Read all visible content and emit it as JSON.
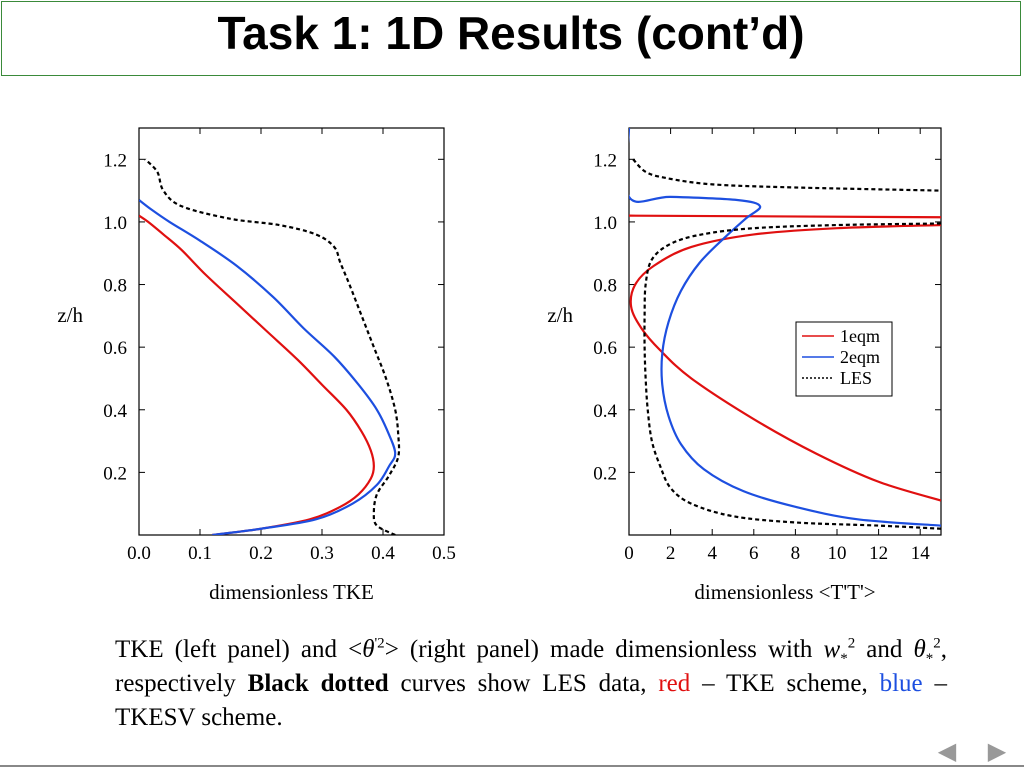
{
  "title": "Task 1: 1D Results (cont’d)",
  "caption": {
    "part1": "TKE (left panel) and <",
    "theta": "θ",
    "prime2": "'2",
    "part2": "> (right panel) made dimensionless with ",
    "w": "w",
    "star": "*",
    "sq": "2",
    "and": " and ",
    "theta2": "θ",
    "part3": ", respectively ",
    "bold": "Black dotted",
    "part4": " curves show LES data, ",
    "red_word": "red",
    "part5": " – TKE scheme, ",
    "blue_word": "blue",
    "part6": " – TKESV scheme."
  },
  "colors": {
    "red": "#e01010",
    "blue": "#1d4fe0",
    "les": "#000000",
    "title_border": "#3a8a3a"
  },
  "nav": {
    "prev_icon": "◀",
    "next_icon": "▶"
  },
  "chart_data": [
    {
      "type": "line",
      "xlabel": "dimensionless TKE",
      "ylabel": "z/h",
      "xlim": [
        0,
        0.5
      ],
      "ylim": [
        0,
        1.3
      ],
      "xticks": [
        "0.0",
        "0.1",
        "0.2",
        "0.3",
        "0.4",
        "0.5"
      ],
      "yticks": [
        "0.2",
        "0.4",
        "0.6",
        "0.8",
        "1.0",
        "1.2"
      ],
      "series": [
        {
          "style": "red-solid",
          "points": [
            [
              0.12,
              0.0
            ],
            [
              0.2,
              0.02
            ],
            [
              0.28,
              0.05
            ],
            [
              0.33,
              0.09
            ],
            [
              0.36,
              0.13
            ],
            [
              0.38,
              0.18
            ],
            [
              0.385,
              0.22
            ],
            [
              0.38,
              0.27
            ],
            [
              0.365,
              0.33
            ],
            [
              0.34,
              0.4
            ],
            [
              0.3,
              0.48
            ],
            [
              0.26,
              0.56
            ],
            [
              0.21,
              0.65
            ],
            [
              0.16,
              0.74
            ],
            [
              0.11,
              0.83
            ],
            [
              0.07,
              0.91
            ],
            [
              0.04,
              0.96
            ],
            [
              0.015,
              1.0
            ],
            [
              0.0,
              1.02
            ]
          ]
        },
        {
          "style": "blue-solid",
          "points": [
            [
              0.12,
              0.0
            ],
            [
              0.2,
              0.02
            ],
            [
              0.29,
              0.05
            ],
            [
              0.35,
              0.1
            ],
            [
              0.39,
              0.16
            ],
            [
              0.41,
              0.22
            ],
            [
              0.42,
              0.26
            ],
            [
              0.41,
              0.32
            ],
            [
              0.39,
              0.4
            ],
            [
              0.36,
              0.48
            ],
            [
              0.32,
              0.57
            ],
            [
              0.27,
              0.66
            ],
            [
              0.22,
              0.76
            ],
            [
              0.16,
              0.86
            ],
            [
              0.1,
              0.94
            ],
            [
              0.05,
              1.0
            ],
            [
              0.02,
              1.04
            ],
            [
              0.0,
              1.07
            ]
          ]
        },
        {
          "style": "black-dotted",
          "points": [
            [
              0.42,
              0.0
            ],
            [
              0.39,
              0.03
            ],
            [
              0.385,
              0.07
            ],
            [
              0.39,
              0.13
            ],
            [
              0.41,
              0.19
            ],
            [
              0.425,
              0.25
            ],
            [
              0.425,
              0.32
            ],
            [
              0.42,
              0.4
            ],
            [
              0.405,
              0.5
            ],
            [
              0.385,
              0.6
            ],
            [
              0.365,
              0.7
            ],
            [
              0.345,
              0.8
            ],
            [
              0.33,
              0.87
            ],
            [
              0.32,
              0.92
            ],
            [
              0.29,
              0.96
            ],
            [
              0.23,
              0.99
            ],
            [
              0.15,
              1.01
            ],
            [
              0.07,
              1.05
            ],
            [
              0.04,
              1.1
            ],
            [
              0.03,
              1.16
            ],
            [
              0.01,
              1.2
            ]
          ]
        }
      ]
    },
    {
      "type": "line",
      "xlabel": "dimensionless <T'T'>",
      "ylabel": "z/h",
      "xlim": [
        0,
        15
      ],
      "ylim": [
        0,
        1.3
      ],
      "xticks": [
        "0",
        "2",
        "4",
        "6",
        "8",
        "10",
        "12",
        "14"
      ],
      "yticks": [
        "0.2",
        "0.4",
        "0.6",
        "0.8",
        "1.0",
        "1.2"
      ],
      "legend": {
        "position": "center-right",
        "entries": [
          "1eqm",
          "2eqm",
          "LES"
        ]
      },
      "series": [
        {
          "name": "1eqm",
          "style": "red-solid",
          "points": [
            [
              15,
              0.11
            ],
            [
              12,
              0.17
            ],
            [
              9,
              0.26
            ],
            [
              6,
              0.37
            ],
            [
              3,
              0.5
            ],
            [
              1.5,
              0.59
            ],
            [
              0.6,
              0.66
            ],
            [
              0.1,
              0.73
            ],
            [
              0.3,
              0.8
            ],
            [
              1.2,
              0.86
            ],
            [
              3,
              0.92
            ],
            [
              6,
              0.96
            ],
            [
              10,
              0.98
            ],
            [
              15,
              0.99
            ]
          ]
        },
        {
          "name": "1eqm-top",
          "style": "red-solid",
          "points": [
            [
              0.0,
              1.02
            ],
            [
              15,
              1.015
            ]
          ]
        },
        {
          "name": "2eqm",
          "style": "blue-solid",
          "points": [
            [
              15,
              0.03
            ],
            [
              11,
              0.05
            ],
            [
              8,
              0.09
            ],
            [
              5.5,
              0.14
            ],
            [
              3.6,
              0.21
            ],
            [
              2.5,
              0.29
            ],
            [
              1.9,
              0.38
            ],
            [
              1.6,
              0.48
            ],
            [
              1.6,
              0.58
            ],
            [
              1.9,
              0.68
            ],
            [
              2.5,
              0.78
            ],
            [
              3.4,
              0.87
            ],
            [
              4.6,
              0.95
            ],
            [
              5.6,
              1.01
            ],
            [
              6.3,
              1.05
            ],
            [
              5.2,
              1.07
            ],
            [
              2.0,
              1.08
            ],
            [
              0.0,
              1.08
            ],
            [
              0.0,
              1.3
            ]
          ]
        },
        {
          "name": "LES",
          "style": "black-dotted",
          "points": [
            [
              15,
              0.02
            ],
            [
              12,
              0.03
            ],
            [
              8,
              0.04
            ],
            [
              5,
              0.06
            ],
            [
              3,
              0.1
            ],
            [
              2,
              0.15
            ],
            [
              1.5,
              0.22
            ],
            [
              1.1,
              0.3
            ],
            [
              0.9,
              0.4
            ],
            [
              0.8,
              0.5
            ],
            [
              0.75,
              0.6
            ],
            [
              0.75,
              0.7
            ],
            [
              0.8,
              0.8
            ],
            [
              1.1,
              0.88
            ],
            [
              2.0,
              0.93
            ],
            [
              3.5,
              0.96
            ],
            [
              6,
              0.98
            ],
            [
              10,
              0.99
            ],
            [
              15,
              0.995
            ]
          ]
        },
        {
          "name": "LES-top",
          "style": "black-dotted",
          "points": [
            [
              0.2,
              1.2
            ],
            [
              0.8,
              1.16
            ],
            [
              1.8,
              1.14
            ],
            [
              4,
              1.12
            ],
            [
              8,
              1.11
            ],
            [
              15,
              1.1
            ]
          ]
        }
      ]
    }
  ]
}
